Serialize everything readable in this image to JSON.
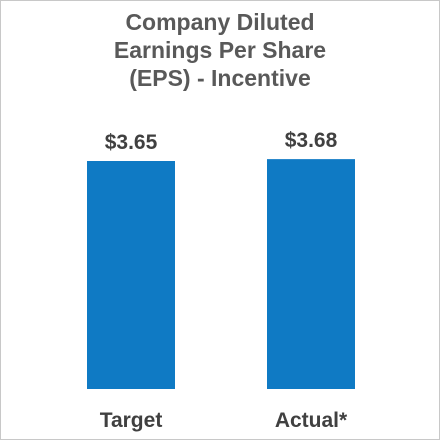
{
  "chart_data": {
    "type": "bar",
    "title_lines": [
      "Company Diluted",
      "Earnings Per Share",
      "(EPS) - Incentive"
    ],
    "categories": [
      "Target",
      "Actual*"
    ],
    "values": [
      3.65,
      3.68
    ],
    "data_labels": [
      "$3.65",
      "$3.68"
    ],
    "bar_color": "#0f7ac4",
    "title_color": "#595959",
    "label_color": "#404040",
    "grid": false,
    "legend": "none"
  }
}
